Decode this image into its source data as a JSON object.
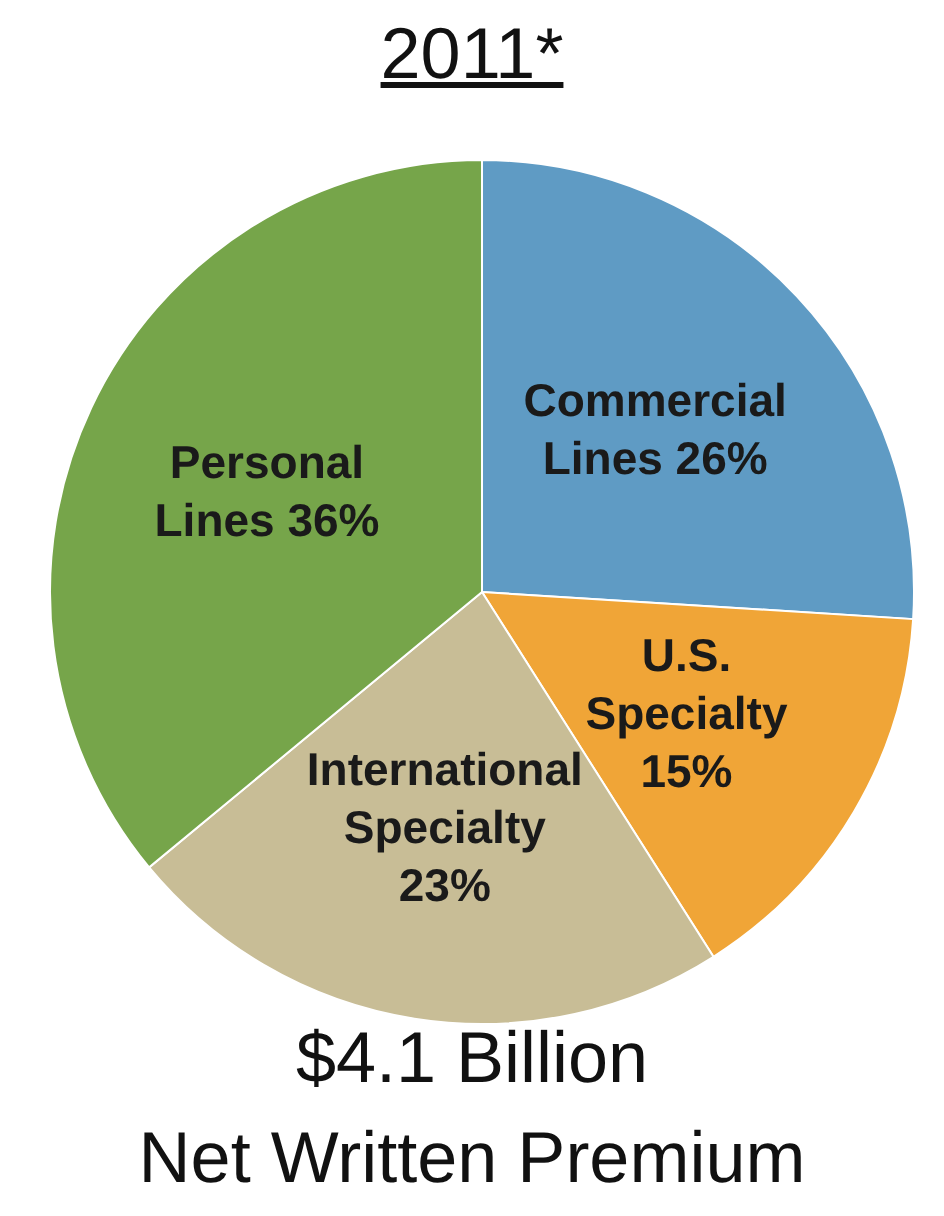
{
  "chart_data": {
    "type": "pie",
    "title": "2011*",
    "categories": [
      "Commercial Lines",
      "U.S. Specialty",
      "International Specialty",
      "Personal Lines"
    ],
    "values": [
      26,
      15,
      23,
      36
    ],
    "colors": [
      "#5f9bc4",
      "#f0a537",
      "#c8bd96",
      "#76a54a"
    ],
    "value_labels": [
      "26%",
      "15%",
      "23%",
      "36%"
    ],
    "annotations": [
      "$4.1 Billion",
      "Net Written Premium"
    ],
    "legend": false
  }
}
